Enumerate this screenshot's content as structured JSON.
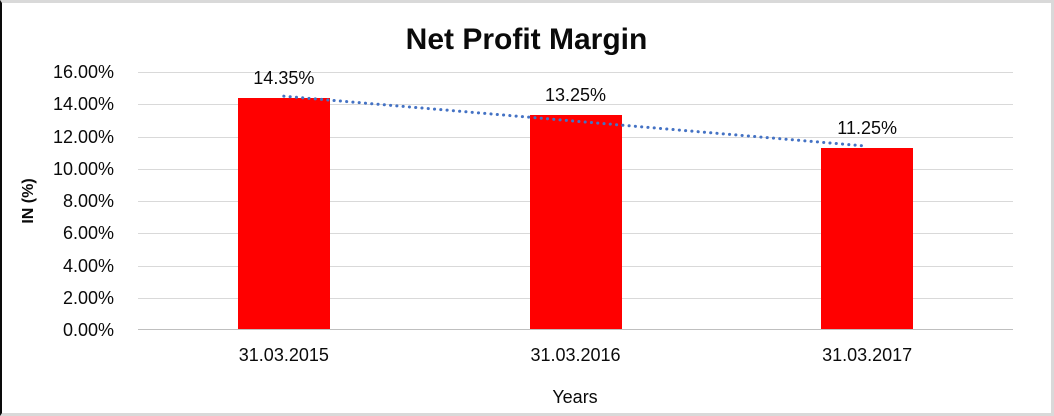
{
  "chart_data": {
    "type": "bar",
    "title": "Net Profit Margin",
    "xlabel": "Years",
    "ylabel": "IN (%)",
    "categories": [
      "31.03.2015",
      "31.03.2016",
      "31.03.2017"
    ],
    "values": [
      14.35,
      13.25,
      11.25
    ],
    "data_labels": [
      "14.35%",
      "13.25%",
      "11.25%"
    ],
    "ylim": [
      0,
      16
    ],
    "ytick_step": 2,
    "ytick_labels": [
      "0.00%",
      "2.00%",
      "4.00%",
      "6.00%",
      "8.00%",
      "10.00%",
      "12.00%",
      "14.00%",
      "16.00%"
    ],
    "grid": true,
    "legend": "none",
    "bar_color": "#ff0000",
    "gridline_color": "#d9d9d9",
    "trendline": {
      "type": "linear",
      "style": "dotted",
      "color": "#4472c4",
      "start_value": 14.5,
      "end_value": 11.4
    }
  }
}
